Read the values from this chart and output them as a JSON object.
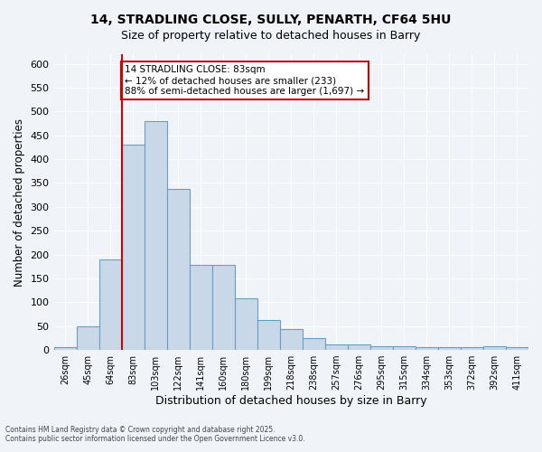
{
  "title_line1": "14, STRADLING CLOSE, SULLY, PENARTH, CF64 5HU",
  "title_line2": "Size of property relative to detached houses in Barry",
  "xlabel": "Distribution of detached houses by size in Barry",
  "ylabel": "Number of detached properties",
  "categories": [
    "26sqm",
    "45sqm",
    "64sqm",
    "83sqm",
    "103sqm",
    "122sqm",
    "141sqm",
    "160sqm",
    "180sqm",
    "199sqm",
    "218sqm",
    "238sqm",
    "257sqm",
    "276sqm",
    "295sqm",
    "315sqm",
    "334sqm",
    "353sqm",
    "372sqm",
    "392sqm",
    "411sqm"
  ],
  "values": [
    5,
    50,
    190,
    430,
    480,
    337,
    178,
    178,
    108,
    62,
    44,
    25,
    11,
    11,
    8,
    8,
    5,
    5,
    5,
    8,
    5
  ],
  "bar_color": "#c8d8e8",
  "bar_edge_color": "#6a9ec0",
  "ylim": [
    0,
    620
  ],
  "yticks": [
    0,
    50,
    100,
    150,
    200,
    250,
    300,
    350,
    400,
    450,
    500,
    550,
    600
  ],
  "property_size": 83,
  "property_bin_index": 3,
  "annotation_title": "14 STRADLING CLOSE: 83sqm",
  "annotation_line2": "← 12% of detached houses are smaller (233)",
  "annotation_line3": "88% of semi-detached houses are larger (1,697) →",
  "vline_color": "#cc0000",
  "annotation_box_color": "#cc0000",
  "footer_line1": "Contains HM Land Registry data © Crown copyright and database right 2025.",
  "footer_line2": "Contains public sector information licensed under the Open Government Licence v3.0.",
  "bg_color": "#f0f4f8",
  "plot_bg_color": "#f0f4f8",
  "grid_color": "#ffffff"
}
